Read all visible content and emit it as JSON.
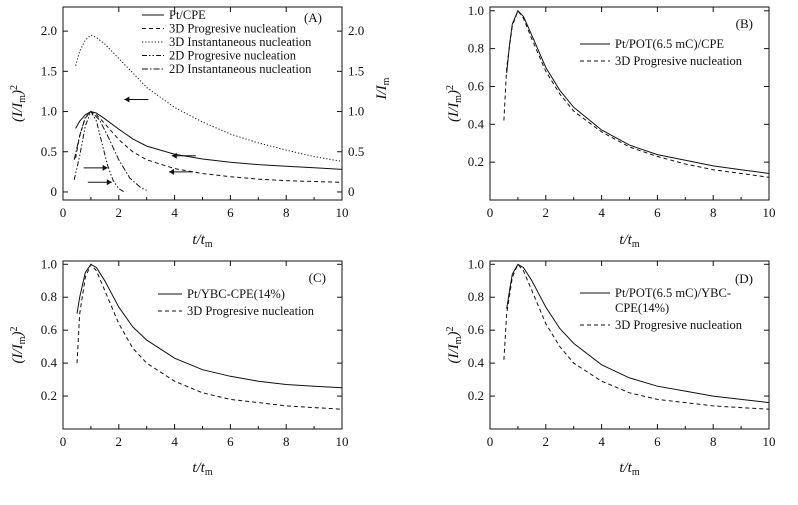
{
  "chart_data": [
    {
      "type": "line",
      "panel_label": "(A)",
      "xlabel": "t/t_m",
      "ylabel": "(I/I_m)^2",
      "ylabel_right": "I/I_m",
      "xlim": [
        0,
        10
      ],
      "ylim": [
        -0.1,
        2.3
      ],
      "xticks": [
        "0",
        "2",
        "4",
        "6",
        "8",
        "10"
      ],
      "yticks": [
        "0",
        "0.5",
        "1.0",
        "1.5",
        "2.0"
      ],
      "yticks_right": [
        "0",
        "0.5",
        "1.0",
        "1.5",
        "2.0"
      ],
      "legend_position": "top-right",
      "series": [
        {
          "name": "Pt/CPE",
          "style": "solid",
          "x": [
            0.45,
            0.6,
            0.8,
            1.0,
            1.2,
            1.5,
            2,
            2.5,
            3,
            4,
            5,
            6,
            7,
            8,
            9,
            10
          ],
          "y": [
            0.79,
            0.88,
            0.96,
            1.0,
            0.98,
            0.91,
            0.78,
            0.66,
            0.57,
            0.47,
            0.41,
            0.37,
            0.34,
            0.32,
            0.3,
            0.28
          ]
        },
        {
          "name": "3D Progresive nucleation",
          "style": "dashed",
          "x": [
            0.45,
            0.6,
            0.8,
            1.0,
            1.2,
            1.5,
            2,
            2.5,
            3,
            4,
            5,
            6,
            7,
            8,
            9,
            10
          ],
          "y": [
            0.42,
            0.7,
            0.92,
            1.0,
            0.96,
            0.85,
            0.65,
            0.5,
            0.4,
            0.29,
            0.23,
            0.19,
            0.16,
            0.14,
            0.13,
            0.12
          ]
        },
        {
          "name": "3D Instantaneous nucleation",
          "style": "dotted",
          "x": [
            0.45,
            0.6,
            0.8,
            1.0,
            1.2,
            1.5,
            2,
            2.5,
            3,
            4,
            5,
            6,
            7,
            8,
            9,
            10
          ],
          "y": [
            1.57,
            1.75,
            1.89,
            1.95,
            1.92,
            1.84,
            1.66,
            1.48,
            1.3,
            1.05,
            0.87,
            0.72,
            0.61,
            0.52,
            0.44,
            0.38
          ]
        },
        {
          "name": "2D Progresive nucleation",
          "style": "dash-dot-dot",
          "x": [
            0.4,
            0.6,
            0.8,
            1.0,
            1.2,
            1.4,
            1.6,
            1.8,
            2.0,
            2.2
          ],
          "y": [
            0.15,
            0.45,
            0.82,
            1.0,
            0.88,
            0.6,
            0.33,
            0.14,
            0.04,
            0.0
          ]
        },
        {
          "name": "2D Instantaneous nucleation",
          "style": "dash-dot",
          "x": [
            0.4,
            0.6,
            0.8,
            1.0,
            1.3,
            1.6,
            2.0,
            2.4,
            2.8,
            3.0
          ],
          "y": [
            0.4,
            0.7,
            0.93,
            1.0,
            0.9,
            0.7,
            0.4,
            0.17,
            0.05,
            0.02
          ]
        }
      ],
      "arrows": [
        {
          "x": 2.2,
          "y": 1.15,
          "direction": "left"
        },
        {
          "x": 3.9,
          "y": 0.45,
          "direction": "left"
        },
        {
          "x": 3.8,
          "y": 0.25,
          "direction": "left"
        },
        {
          "x": 1.6,
          "y": 0.3,
          "direction": "right"
        },
        {
          "x": 1.75,
          "y": 0.12,
          "direction": "right"
        }
      ]
    },
    {
      "type": "line",
      "panel_label": "(B)",
      "xlabel": "t/t_m",
      "ylabel": "(I/I_m)^2",
      "xlim": [
        0,
        10
      ],
      "ylim": [
        0,
        1.02
      ],
      "xticks": [
        "0",
        "2",
        "4",
        "6",
        "8",
        "10"
      ],
      "yticks": [
        "0.2",
        "0.4",
        "0.6",
        "0.8",
        "1.0"
      ],
      "legend_position": "top-right",
      "series": [
        {
          "name": "Pt/POT(6.5 mC)/CPE",
          "style": "solid",
          "x": [
            0.6,
            0.7,
            0.8,
            1.0,
            1.2,
            1.5,
            2,
            2.5,
            3,
            4,
            5,
            6,
            7,
            8,
            9,
            10
          ],
          "y": [
            0.67,
            0.82,
            0.93,
            1.0,
            0.97,
            0.87,
            0.7,
            0.58,
            0.49,
            0.37,
            0.29,
            0.24,
            0.21,
            0.18,
            0.16,
            0.14
          ]
        },
        {
          "name": "3D Progresive nucleation",
          "style": "dashed",
          "x": [
            0.5,
            0.6,
            0.8,
            1.0,
            1.2,
            1.5,
            2,
            2.5,
            3,
            4,
            5,
            6,
            7,
            8,
            9,
            10
          ],
          "y": [
            0.42,
            0.7,
            0.92,
            1.0,
            0.96,
            0.85,
            0.68,
            0.56,
            0.47,
            0.36,
            0.28,
            0.23,
            0.19,
            0.16,
            0.14,
            0.12
          ]
        }
      ]
    },
    {
      "type": "line",
      "panel_label": "(C)",
      "xlabel": "t/t_m",
      "ylabel": "(I/I_m)^2",
      "xlim": [
        0,
        10
      ],
      "ylim": [
        0,
        1.02
      ],
      "xticks": [
        "0",
        "2",
        "4",
        "6",
        "8",
        "10"
      ],
      "yticks": [
        "0.2",
        "0.4",
        "0.6",
        "0.8",
        "1.0"
      ],
      "legend_position": "top-right",
      "series": [
        {
          "name": "Pt/YBC-CPE(14%)",
          "style": "solid",
          "x": [
            0.5,
            0.6,
            0.8,
            1.0,
            1.2,
            1.5,
            2,
            2.5,
            3,
            4,
            5,
            6,
            7,
            8,
            9,
            10
          ],
          "y": [
            0.7,
            0.8,
            0.95,
            1.0,
            0.98,
            0.9,
            0.74,
            0.62,
            0.54,
            0.43,
            0.36,
            0.32,
            0.29,
            0.27,
            0.26,
            0.25
          ]
        },
        {
          "name": "3D Progresive nucleation",
          "style": "dashed",
          "x": [
            0.5,
            0.6,
            0.8,
            1.0,
            1.2,
            1.5,
            2,
            2.5,
            3,
            4,
            5,
            6,
            7,
            8,
            9,
            10
          ],
          "y": [
            0.4,
            0.7,
            0.92,
            1.0,
            0.96,
            0.84,
            0.64,
            0.49,
            0.4,
            0.29,
            0.22,
            0.18,
            0.16,
            0.14,
            0.13,
            0.12
          ]
        }
      ]
    },
    {
      "type": "line",
      "panel_label": "(D)",
      "xlabel": "t/t_m",
      "ylabel": "(I/I_m)^2",
      "xlim": [
        0,
        10
      ],
      "ylim": [
        0,
        1.02
      ],
      "xticks": [
        "0",
        "2",
        "4",
        "6",
        "8",
        "10"
      ],
      "yticks": [
        "0.2",
        "0.4",
        "0.6",
        "0.8",
        "1.0"
      ],
      "legend_position": "top-right",
      "series": [
        {
          "name": "Pt/POT(6.5 mC)/YBC-\nCPE(14%)",
          "style": "solid",
          "x": [
            0.6,
            0.7,
            0.8,
            1.0,
            1.2,
            1.5,
            2,
            2.5,
            3,
            4,
            5,
            6,
            7,
            8,
            9,
            10
          ],
          "y": [
            0.73,
            0.84,
            0.94,
            1.0,
            0.98,
            0.9,
            0.74,
            0.61,
            0.52,
            0.39,
            0.31,
            0.26,
            0.23,
            0.2,
            0.18,
            0.16
          ]
        },
        {
          "name": "3D Progresive nucleation",
          "style": "dashed",
          "x": [
            0.5,
            0.6,
            0.8,
            1.0,
            1.2,
            1.5,
            2,
            2.5,
            3,
            4,
            5,
            6,
            7,
            8,
            9,
            10
          ],
          "y": [
            0.42,
            0.7,
            0.92,
            1.0,
            0.96,
            0.84,
            0.64,
            0.5,
            0.4,
            0.29,
            0.22,
            0.18,
            0.16,
            0.14,
            0.13,
            0.12
          ]
        }
      ]
    }
  ]
}
